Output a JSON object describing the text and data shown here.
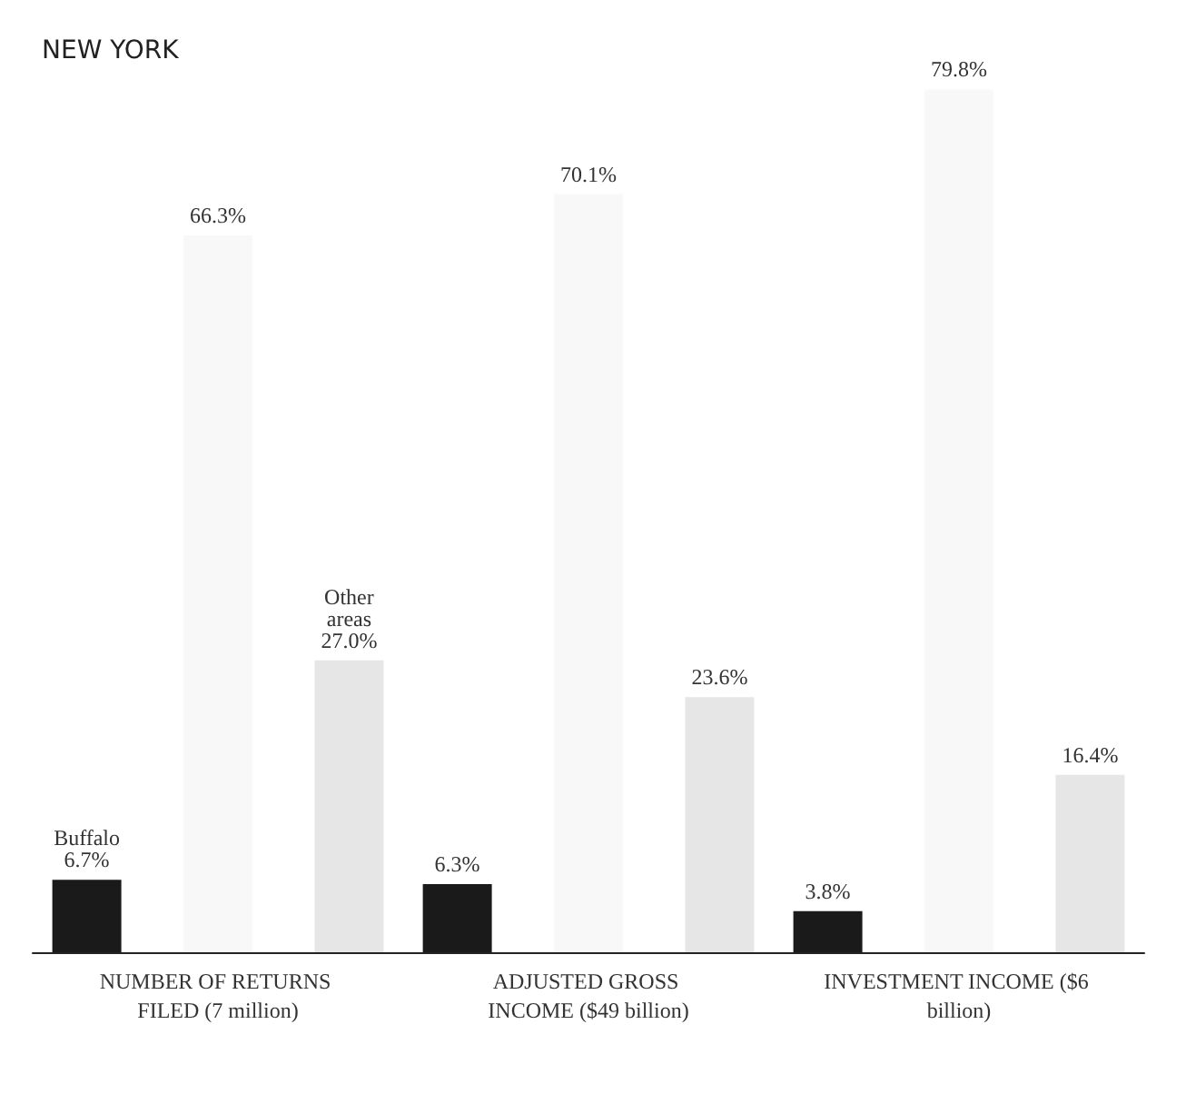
{
  "chart_data": {
    "type": "bar",
    "title": "NEW YORK",
    "categories": [
      "NUMBER OF RETURNS FILED (7 million)",
      "ADJUSTED GROSS INCOME ($49 billion)",
      "INVESTMENT INCOME ($6 billion)"
    ],
    "series": [
      {
        "name": "Buffalo",
        "color": "#1a1a1a",
        "values": [
          6.7,
          6.3,
          3.8
        ],
        "value_labels": [
          "6.7%",
          "6.3%",
          "3.8%"
        ]
      },
      {
        "color": "#f8f8f8",
        "values": [
          66.3,
          70.1,
          79.8
        ],
        "value_labels": [
          "66.3%",
          "70.1%",
          "79.8%"
        ]
      },
      {
        "name": "Other areas",
        "color": "#e6e6e6",
        "values": [
          27.0,
          23.6,
          16.4
        ],
        "value_labels": [
          "27.0%",
          "23.6%",
          "16.4%"
        ]
      }
    ],
    "legend": false,
    "grid": false
  }
}
